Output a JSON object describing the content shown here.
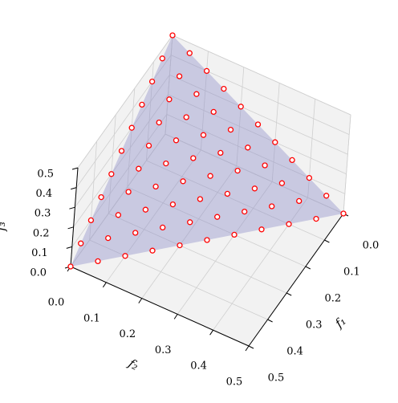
{
  "chart_data": {
    "type": "scatter3d",
    "xlabel": "f₁",
    "ylabel": "f₂",
    "zlabel": "f₃",
    "xlim": [
      0,
      0.5
    ],
    "ylim": [
      0,
      0.5
    ],
    "zlim": [
      0,
      0.5
    ],
    "xticks": [
      {
        "value": 0,
        "label": "0.0"
      },
      0.1,
      0.2,
      0.3,
      0.4,
      0.5
    ],
    "yticks": [
      {
        "value": 0,
        "label": "0.0"
      },
      0.1,
      0.2,
      0.3,
      0.4,
      0.5
    ],
    "zticks": [
      {
        "value": 0,
        "label": "0.0"
      },
      0.1,
      0.2,
      0.3,
      0.4,
      0.5
    ],
    "grid": true,
    "color": "#ff0000",
    "surface_color": "#8c8cc8",
    "x": [
      0,
      0,
      0,
      0,
      0,
      0,
      0,
      0,
      0,
      0,
      0,
      0.05,
      0.05,
      0.05,
      0.05,
      0.05,
      0.05,
      0.05,
      0.05,
      0.05,
      0.05,
      0.1,
      0.1,
      0.1,
      0.1,
      0.1,
      0.1,
      0.1,
      0.1,
      0.1,
      0.15,
      0.15,
      0.15,
      0.15,
      0.15,
      0.15,
      0.15,
      0.15,
      0.2,
      0.2,
      0.2,
      0.2,
      0.2,
      0.2,
      0.2,
      0.25,
      0.25,
      0.25,
      0.25,
      0.25,
      0.25,
      0.3,
      0.3,
      0.3,
      0.3,
      0.3,
      0.35,
      0.35,
      0.35,
      0.35,
      0.4,
      0.4,
      0.4,
      0.45,
      0.45,
      0.5
    ],
    "y": [
      0,
      0.05,
      0.1,
      0.15,
      0.2,
      0.25,
      0.3,
      0.35,
      0.4,
      0.45,
      0.5,
      0,
      0.05,
      0.1,
      0.15,
      0.2,
      0.25,
      0.3,
      0.35,
      0.4,
      0.45,
      0,
      0.05,
      0.1,
      0.15,
      0.2,
      0.25,
      0.3,
      0.35,
      0.4,
      0,
      0.05,
      0.1,
      0.15,
      0.2,
      0.25,
      0.3,
      0.35,
      0,
      0.05,
      0.1,
      0.15,
      0.2,
      0.25,
      0.3,
      0,
      0.05,
      0.1,
      0.15,
      0.2,
      0.25,
      0,
      0.05,
      0.1,
      0.15,
      0.2,
      0,
      0.05,
      0.1,
      0.15,
      0,
      0.05,
      0.1,
      0,
      0.05,
      0
    ],
    "z": [
      0.5,
      0.45,
      0.4,
      0.35,
      0.3,
      0.25,
      0.2,
      0.15,
      0.1,
      0.05,
      0,
      0.45,
      0.4,
      0.35,
      0.3,
      0.25,
      0.2,
      0.15,
      0.1,
      0.05,
      0,
      0.4,
      0.35,
      0.3,
      0.25,
      0.2,
      0.15,
      0.1,
      0.05,
      0,
      0.35,
      0.3,
      0.25,
      0.2,
      0.15,
      0.1,
      0.05,
      0,
      0.3,
      0.25,
      0.2,
      0.15,
      0.1,
      0.05,
      0,
      0.25,
      0.2,
      0.15,
      0.1,
      0.05,
      0,
      0.2,
      0.15,
      0.1,
      0.05,
      0,
      0.15,
      0.1,
      0.05,
      0,
      0.1,
      0.05,
      0,
      0.05,
      0,
      0
    ]
  }
}
